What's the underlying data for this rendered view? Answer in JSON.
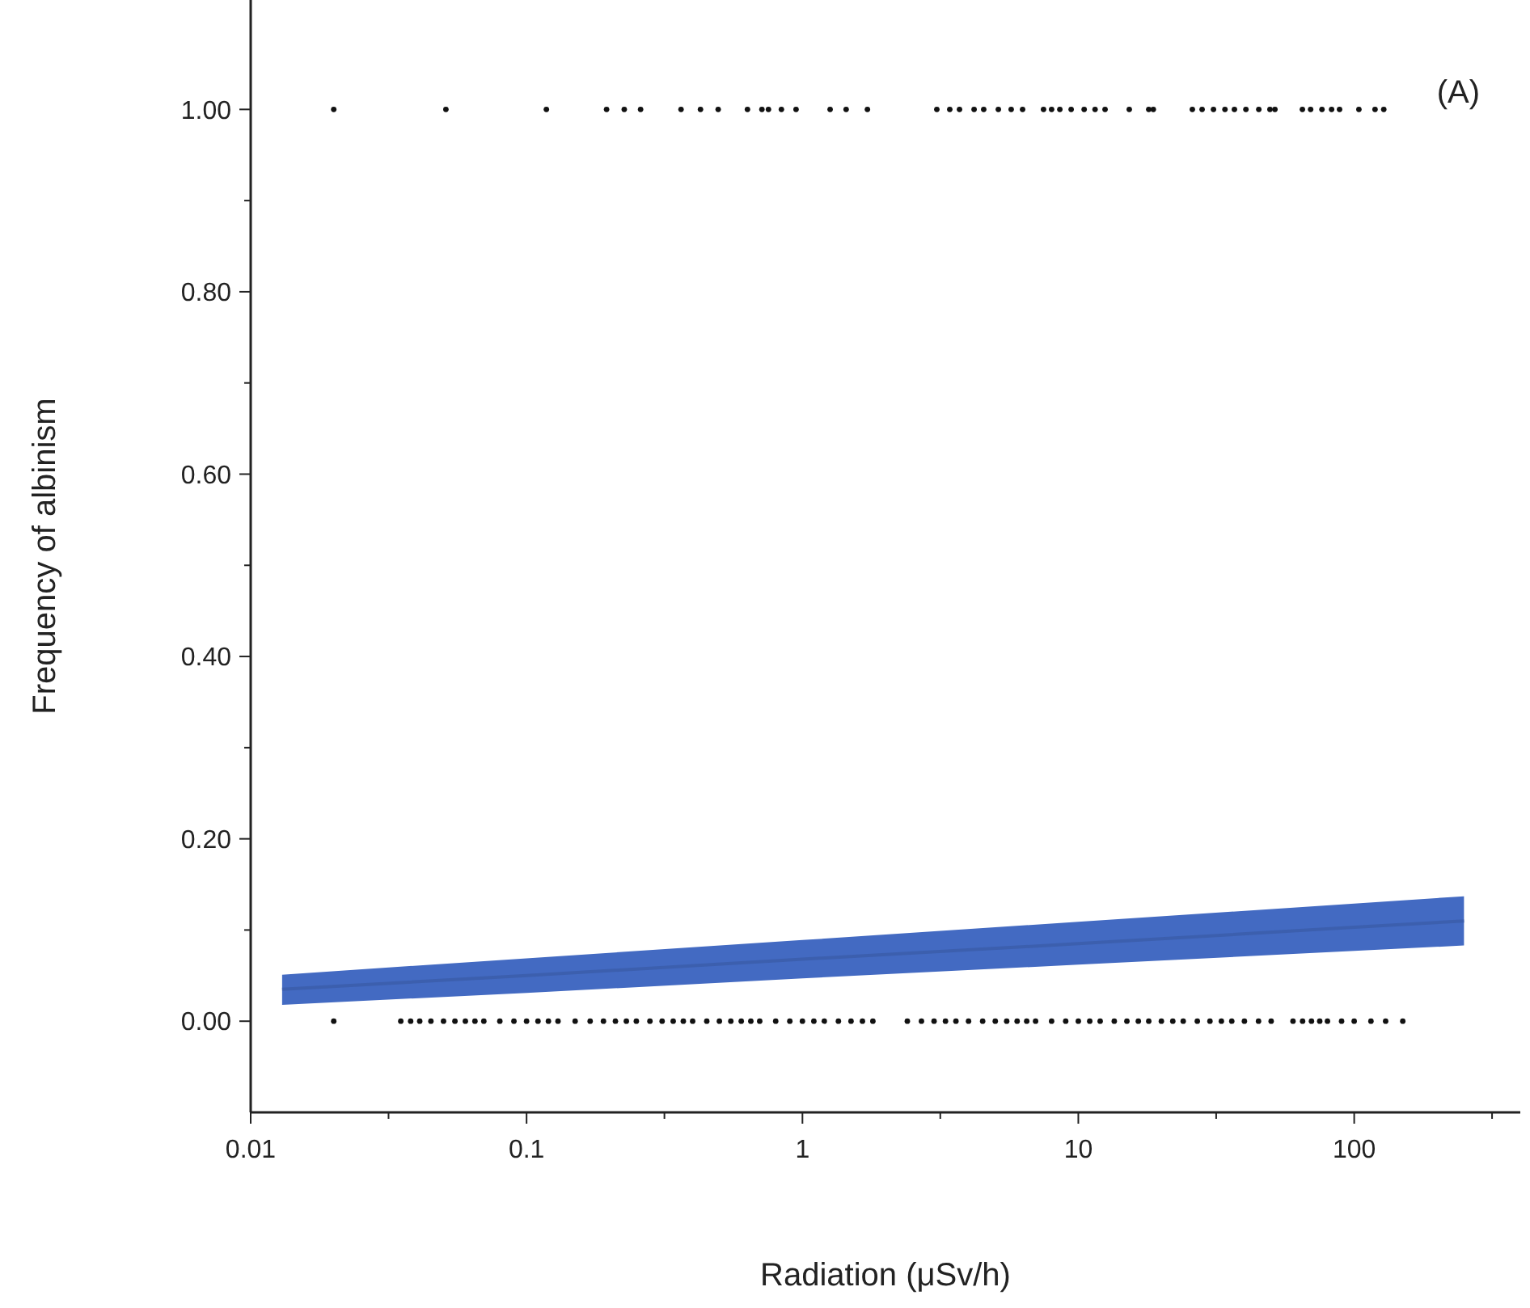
{
  "chart_data": {
    "type": "scatter",
    "xlabel": "Radiation (μSv/h)",
    "ylabel": "Frequency of albinism",
    "annotations": [
      "(A)"
    ],
    "log": "x",
    "grid": false,
    "xlim": [
      0.01,
      400
    ],
    "ylim": [
      -0.1,
      1.12
    ],
    "xticks": [
      0.01,
      {
        "value": 0.0316,
        "label": null
      },
      0.1,
      {
        "value": 0.316,
        "label": null
      },
      1,
      {
        "value": 3.16,
        "label": null
      },
      10,
      {
        "value": 31.6,
        "label": null
      },
      100,
      {
        "value": 316,
        "label": null
      }
    ],
    "yticks": [
      {
        "value": 0,
        "label": "0.00"
      },
      {
        "value": 0.1,
        "label": null
      },
      {
        "value": 0.2,
        "label": "0.20"
      },
      {
        "value": 0.3,
        "label": null
      },
      {
        "value": 0.4,
        "label": "0.40"
      },
      {
        "value": 0.5,
        "label": null
      },
      {
        "value": 0.6,
        "label": "0.60"
      },
      {
        "value": 0.7,
        "label": null
      },
      {
        "value": 0.8,
        "label": "0.80"
      },
      {
        "value": 0.9,
        "label": null
      },
      {
        "value": 1,
        "label": "1.00"
      }
    ],
    "series": [
      {
        "color": "#111111",
        "marker": "circle",
        "x": [
          0.02,
          0.051,
          0.118,
          0.195,
          0.226,
          0.259,
          0.363,
          0.427,
          0.495,
          0.632,
          0.713,
          0.753,
          0.839,
          0.948,
          1.26,
          1.44,
          1.72,
          3.07,
          3.42,
          3.71,
          4.19,
          4.54,
          5.13,
          5.71,
          6.28,
          7.48,
          8.0,
          8.57,
          9.42,
          10.5,
          11.5,
          12.5,
          15.3,
          18.0,
          18.7,
          25.9,
          28.1,
          30.9,
          34.0,
          36.8,
          40.5,
          45.1,
          49.5,
          51.6,
          64.9,
          69.5,
          76.4,
          82.8,
          88.5,
          104,
          119,
          128
        ],
        "values": [
          1,
          1,
          1,
          1,
          1,
          1,
          1,
          1,
          1,
          1,
          1,
          1,
          1,
          1,
          1,
          1,
          1,
          1,
          1,
          1,
          1,
          1,
          1,
          1,
          1,
          1,
          1,
          1,
          1,
          1,
          1,
          1,
          1,
          1,
          1,
          1,
          1,
          1,
          1,
          1,
          1,
          1,
          1,
          1,
          1,
          1,
          1,
          1,
          1,
          1,
          1,
          1
        ]
      },
      {
        "color": "#111111",
        "marker": "circle",
        "x": [
          0.02,
          0.035,
          0.038,
          0.041,
          0.045,
          0.05,
          0.055,
          0.06,
          0.065,
          0.07,
          0.08,
          0.09,
          0.1,
          0.11,
          0.12,
          0.13,
          0.15,
          0.17,
          0.19,
          0.21,
          0.23,
          0.25,
          0.28,
          0.31,
          0.34,
          0.37,
          0.4,
          0.45,
          0.5,
          0.55,
          0.6,
          0.65,
          0.7,
          0.8,
          0.9,
          1.0,
          1.1,
          1.2,
          1.35,
          1.5,
          1.65,
          1.8,
          2.4,
          2.7,
          3.0,
          3.3,
          3.6,
          4.0,
          4.5,
          5,
          5.5,
          6,
          6.5,
          7,
          8,
          9,
          10,
          11,
          12,
          13.5,
          15,
          16.5,
          18,
          20,
          22,
          24,
          27,
          30,
          33,
          36,
          40,
          45,
          50,
          60,
          65,
          70,
          75,
          80,
          90,
          100,
          115,
          130,
          150
        ],
        "values": [
          0,
          0,
          0,
          0,
          0,
          0,
          0,
          0,
          0,
          0,
          0,
          0,
          0,
          0,
          0,
          0,
          0,
          0,
          0,
          0,
          0,
          0,
          0,
          0,
          0,
          0,
          0,
          0,
          0,
          0,
          0,
          0,
          0,
          0,
          0,
          0,
          0,
          0,
          0,
          0,
          0,
          0,
          0,
          0,
          0,
          0,
          0,
          0,
          0,
          0,
          0,
          0,
          0,
          0,
          0,
          0,
          0,
          0,
          0,
          0,
          0,
          0,
          0,
          0,
          0,
          0,
          0,
          0,
          0,
          0,
          0,
          0,
          0,
          0,
          0,
          0,
          0,
          0,
          0,
          0,
          0,
          0,
          0
        ]
      },
      {
        "type": "line",
        "color": "#3c5fae",
        "x": [
          0.013,
          0.1,
          1,
          10,
          100,
          250
        ],
        "values": [
          0.035,
          0.05,
          0.068,
          0.085,
          0.103,
          0.11
        ],
        "lower": [
          0.018,
          0.031,
          0.047,
          0.062,
          0.077,
          0.083
        ],
        "upper": [
          0.051,
          0.069,
          0.089,
          0.109,
          0.129,
          0.137
        ]
      }
    ]
  }
}
